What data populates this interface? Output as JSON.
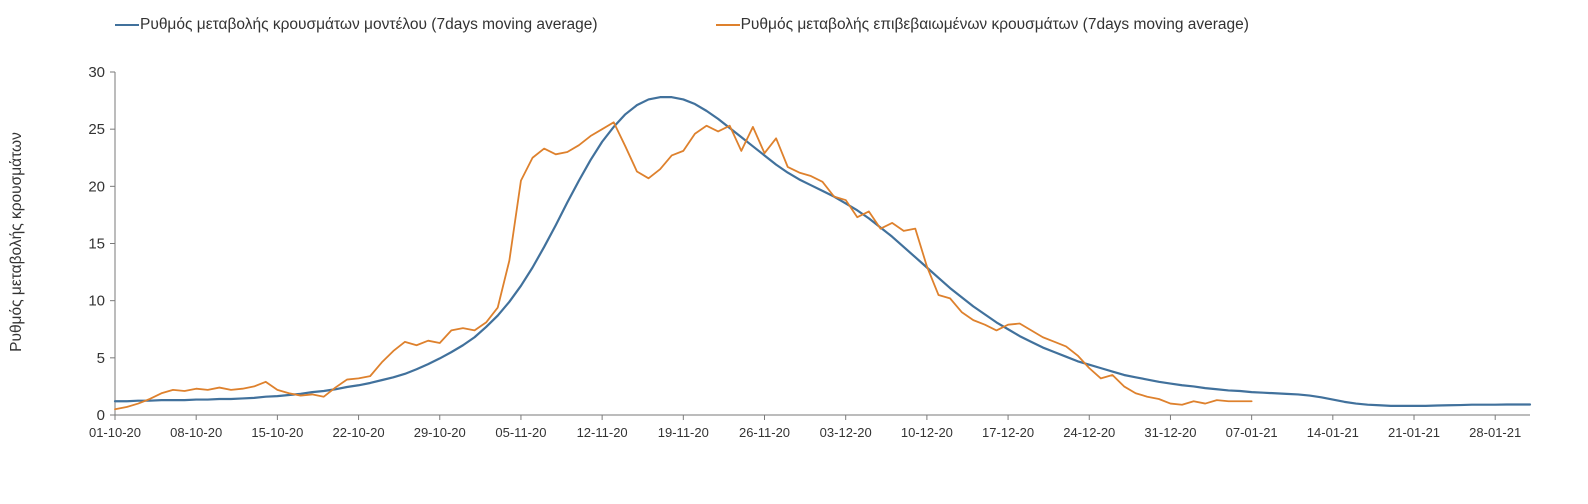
{
  "legend": {
    "items": [
      {
        "label": "Ρυθμός μεταβολής κρουσμάτων μοντέλου (7days moving average)",
        "color": "#41719C"
      },
      {
        "label": "Ρυθμός μεταβολής επιβεβαιωμένων κρουσμάτων (7days moving average)",
        "color": "#DE812D"
      }
    ]
  },
  "axis": {
    "line_color": "#7a7a7a",
    "label_color": "#333333"
  },
  "chart_data": {
    "type": "line",
    "title": "",
    "y_axis_title": "Ρυθμός μεταβολής κρουσμάτων",
    "xlabel": "",
    "ylabel": "Ρυθμός μεταβολής κρουσμάτων",
    "ylim": [
      0,
      30
    ],
    "y_ticks": [
      0,
      5,
      10,
      15,
      20,
      25,
      30
    ],
    "x_tick_labels": [
      "01-10-20",
      "08-10-20",
      "15-10-20",
      "22-10-20",
      "29-10-20",
      "05-11-20",
      "12-11-20",
      "19-11-20",
      "26-11-20",
      "03-12-20",
      "10-12-20",
      "17-12-20",
      "24-12-20",
      "31-12-20",
      "07-01-21",
      "14-01-21",
      "21-01-21",
      "28-01-21"
    ],
    "x_tick_days": [
      0,
      7,
      14,
      21,
      28,
      35,
      42,
      49,
      56,
      63,
      70,
      77,
      84,
      91,
      98,
      105,
      112,
      119
    ],
    "x_domain_days": [
      0,
      122
    ],
    "grid": false,
    "legend_position": "top",
    "series": [
      {
        "name": "Ρυθμός μεταβολής κρουσμάτων μοντέλου (7days moving average)",
        "color": "#41719C",
        "stroke_width": 2.2,
        "start_day": 0,
        "step_days": 1,
        "values": [
          1.2,
          1.2,
          1.25,
          1.25,
          1.3,
          1.3,
          1.3,
          1.35,
          1.35,
          1.4,
          1.4,
          1.45,
          1.5,
          1.6,
          1.65,
          1.75,
          1.85,
          2.0,
          2.1,
          2.25,
          2.45,
          2.6,
          2.8,
          3.05,
          3.3,
          3.6,
          4.0,
          4.45,
          4.95,
          5.5,
          6.1,
          6.8,
          7.7,
          8.7,
          9.9,
          11.3,
          12.9,
          14.7,
          16.6,
          18.6,
          20.5,
          22.3,
          23.9,
          25.2,
          26.3,
          27.1,
          27.6,
          27.8,
          27.8,
          27.6,
          27.2,
          26.6,
          25.9,
          25.1,
          24.3,
          23.5,
          22.7,
          21.9,
          21.2,
          20.6,
          20.1,
          19.6,
          19.1,
          18.5,
          17.9,
          17.2,
          16.4,
          15.6,
          14.7,
          13.8,
          12.9,
          12.0,
          11.1,
          10.3,
          9.5,
          8.8,
          8.1,
          7.5,
          6.9,
          6.4,
          5.9,
          5.5,
          5.1,
          4.7,
          4.4,
          4.1,
          3.8,
          3.5,
          3.3,
          3.1,
          2.9,
          2.75,
          2.6,
          2.5,
          2.35,
          2.25,
          2.15,
          2.1,
          2.0,
          1.95,
          1.9,
          1.85,
          1.8,
          1.7,
          1.55,
          1.35,
          1.15,
          1.0,
          0.9,
          0.85,
          0.8,
          0.8,
          0.8,
          0.8,
          0.83,
          0.85,
          0.87,
          0.9,
          0.9,
          0.9,
          0.92,
          0.92,
          0.92
        ]
      },
      {
        "name": "Ρυθμός μεταβολής επιβεβαιωμένων κρουσμάτων (7days moving average)",
        "color": "#DE812D",
        "stroke_width": 1.8,
        "start_day": 0,
        "step_days": 1,
        "values": [
          0.5,
          0.7,
          1.0,
          1.4,
          1.9,
          2.2,
          2.1,
          2.3,
          2.2,
          2.4,
          2.2,
          2.3,
          2.5,
          2.9,
          2.2,
          1.9,
          1.7,
          1.8,
          1.6,
          2.4,
          3.1,
          3.2,
          3.4,
          4.6,
          5.6,
          6.4,
          6.1,
          6.5,
          6.3,
          7.4,
          7.6,
          7.4,
          8.1,
          9.4,
          13.5,
          20.5,
          22.5,
          23.3,
          22.8,
          23.0,
          23.6,
          24.4,
          25.0,
          25.6,
          23.5,
          21.3,
          20.7,
          21.5,
          22.7,
          23.1,
          24.6,
          25.3,
          24.8,
          25.3,
          23.1,
          25.2,
          22.9,
          24.2,
          21.7,
          21.2,
          20.9,
          20.4,
          19.1,
          18.8,
          17.3,
          17.8,
          16.3,
          16.8,
          16.1,
          16.3,
          13.0,
          10.5,
          10.2,
          9.0,
          8.3,
          7.9,
          7.4,
          7.9,
          8.0,
          7.4,
          6.8,
          6.4,
          6.0,
          5.2,
          4.1,
          3.2,
          3.5,
          2.5,
          1.9,
          1.6,
          1.4,
          1.0,
          0.9,
          1.2,
          1.0,
          1.3,
          1.2,
          1.2,
          1.2
        ]
      }
    ]
  }
}
